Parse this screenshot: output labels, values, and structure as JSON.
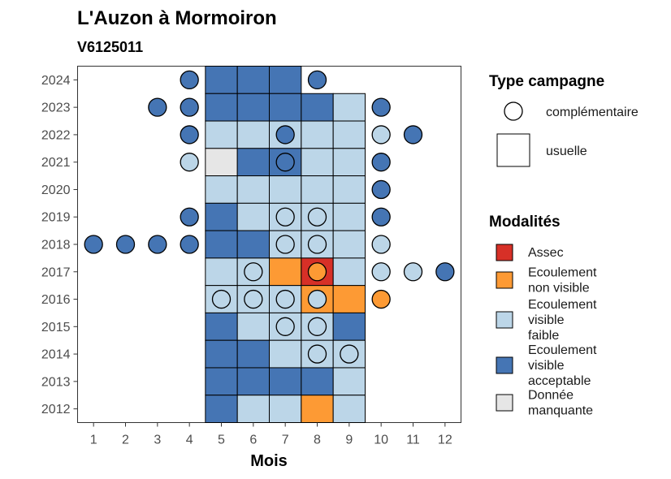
{
  "chart_data": {
    "type": "heatmap",
    "title": "L'Auzon à Mormoiron",
    "subtitle": "V6125011",
    "xlabel": "Mois",
    "ylabel": "",
    "x_ticks": [
      "1",
      "2",
      "3",
      "4",
      "5",
      "6",
      "7",
      "8",
      "9",
      "10",
      "11",
      "12"
    ],
    "y_ticks": [
      "2012",
      "2013",
      "2014",
      "2015",
      "2016",
      "2017",
      "2018",
      "2019",
      "2020",
      "2021",
      "2022",
      "2023",
      "2024"
    ],
    "xlim": [
      0.5,
      12.5
    ],
    "ylim": [
      2011.5,
      2024.5
    ],
    "grid": false,
    "legend_position": "right",
    "colors": {
      "Assec": "#d73027",
      "Ecoulement non visible": "#fd9a34",
      "Ecoulement visible faible": "#bcd6e8",
      "Ecoulement visible acceptable": "#4575b4",
      "Donnée manquante": "#e6e6e6"
    },
    "legend_type": {
      "title": "Type campagne",
      "entries": [
        {
          "label": "complémentaire",
          "shape": "circle"
        },
        {
          "label": "usuelle",
          "shape": "square"
        }
      ]
    },
    "legend_modalites": {
      "title": "Modalités",
      "entries": [
        {
          "key": "Assec",
          "lines": [
            "Assec"
          ]
        },
        {
          "key": "Ecoulement non visible",
          "lines": [
            "Ecoulement",
            "non visible"
          ]
        },
        {
          "key": "Ecoulement visible faible",
          "lines": [
            "Ecoulement",
            "visible",
            "faible"
          ]
        },
        {
          "key": "Ecoulement visible acceptable",
          "lines": [
            "Ecoulement",
            "visible",
            "acceptable"
          ]
        },
        {
          "key": "Donnée manquante",
          "lines": [
            "Donnée",
            "manquante"
          ]
        }
      ]
    },
    "usuelle": [
      {
        "year": 2024,
        "month": 5,
        "modalite": "Ecoulement visible acceptable"
      },
      {
        "year": 2024,
        "month": 6,
        "modalite": "Ecoulement visible acceptable"
      },
      {
        "year": 2024,
        "month": 7,
        "modalite": "Ecoulement visible acceptable"
      },
      {
        "year": 2023,
        "month": 5,
        "modalite": "Ecoulement visible acceptable"
      },
      {
        "year": 2023,
        "month": 6,
        "modalite": "Ecoulement visible acceptable"
      },
      {
        "year": 2023,
        "month": 7,
        "modalite": "Ecoulement visible acceptable"
      },
      {
        "year": 2023,
        "month": 8,
        "modalite": "Ecoulement visible acceptable"
      },
      {
        "year": 2023,
        "month": 9,
        "modalite": "Ecoulement visible faible"
      },
      {
        "year": 2022,
        "month": 5,
        "modalite": "Ecoulement visible faible"
      },
      {
        "year": 2022,
        "month": 6,
        "modalite": "Ecoulement visible faible"
      },
      {
        "year": 2022,
        "month": 7,
        "modalite": "Ecoulement visible faible"
      },
      {
        "year": 2022,
        "month": 8,
        "modalite": "Ecoulement visible faible"
      },
      {
        "year": 2022,
        "month": 9,
        "modalite": "Ecoulement visible faible"
      },
      {
        "year": 2021,
        "month": 5,
        "modalite": "Donnée manquante"
      },
      {
        "year": 2021,
        "month": 6,
        "modalite": "Ecoulement visible acceptable"
      },
      {
        "year": 2021,
        "month": 7,
        "modalite": "Ecoulement visible acceptable"
      },
      {
        "year": 2021,
        "month": 8,
        "modalite": "Ecoulement visible faible"
      },
      {
        "year": 2021,
        "month": 9,
        "modalite": "Ecoulement visible faible"
      },
      {
        "year": 2020,
        "month": 5,
        "modalite": "Ecoulement visible faible"
      },
      {
        "year": 2020,
        "month": 6,
        "modalite": "Ecoulement visible faible"
      },
      {
        "year": 2020,
        "month": 7,
        "modalite": "Ecoulement visible faible"
      },
      {
        "year": 2020,
        "month": 8,
        "modalite": "Ecoulement visible faible"
      },
      {
        "year": 2020,
        "month": 9,
        "modalite": "Ecoulement visible faible"
      },
      {
        "year": 2019,
        "month": 5,
        "modalite": "Ecoulement visible acceptable"
      },
      {
        "year": 2019,
        "month": 6,
        "modalite": "Ecoulement visible faible"
      },
      {
        "year": 2019,
        "month": 7,
        "modalite": "Ecoulement visible faible"
      },
      {
        "year": 2019,
        "month": 8,
        "modalite": "Ecoulement visible faible"
      },
      {
        "year": 2019,
        "month": 9,
        "modalite": "Ecoulement visible faible"
      },
      {
        "year": 2018,
        "month": 5,
        "modalite": "Ecoulement visible acceptable"
      },
      {
        "year": 2018,
        "month": 6,
        "modalite": "Ecoulement visible acceptable"
      },
      {
        "year": 2018,
        "month": 7,
        "modalite": "Ecoulement visible faible"
      },
      {
        "year": 2018,
        "month": 8,
        "modalite": "Ecoulement visible faible"
      },
      {
        "year": 2018,
        "month": 9,
        "modalite": "Ecoulement visible faible"
      },
      {
        "year": 2017,
        "month": 5,
        "modalite": "Ecoulement visible faible"
      },
      {
        "year": 2017,
        "month": 6,
        "modalite": "Ecoulement visible faible"
      },
      {
        "year": 2017,
        "month": 7,
        "modalite": "Ecoulement non visible"
      },
      {
        "year": 2017,
        "month": 8,
        "modalite": "Assec"
      },
      {
        "year": 2017,
        "month": 9,
        "modalite": "Ecoulement visible faible"
      },
      {
        "year": 2016,
        "month": 5,
        "modalite": "Ecoulement visible faible"
      },
      {
        "year": 2016,
        "month": 6,
        "modalite": "Ecoulement visible faible"
      },
      {
        "year": 2016,
        "month": 7,
        "modalite": "Ecoulement visible faible"
      },
      {
        "year": 2016,
        "month": 8,
        "modalite": "Ecoulement non visible"
      },
      {
        "year": 2016,
        "month": 9,
        "modalite": "Ecoulement non visible"
      },
      {
        "year": 2015,
        "month": 5,
        "modalite": "Ecoulement visible acceptable"
      },
      {
        "year": 2015,
        "month": 6,
        "modalite": "Ecoulement visible faible"
      },
      {
        "year": 2015,
        "month": 7,
        "modalite": "Ecoulement visible faible"
      },
      {
        "year": 2015,
        "month": 8,
        "modalite": "Ecoulement visible faible"
      },
      {
        "year": 2015,
        "month": 9,
        "modalite": "Ecoulement visible acceptable"
      },
      {
        "year": 2014,
        "month": 5,
        "modalite": "Ecoulement visible acceptable"
      },
      {
        "year": 2014,
        "month": 6,
        "modalite": "Ecoulement visible acceptable"
      },
      {
        "year": 2014,
        "month": 7,
        "modalite": "Ecoulement visible faible"
      },
      {
        "year": 2014,
        "month": 8,
        "modalite": "Ecoulement visible faible"
      },
      {
        "year": 2014,
        "month": 9,
        "modalite": "Ecoulement visible faible"
      },
      {
        "year": 2013,
        "month": 5,
        "modalite": "Ecoulement visible acceptable"
      },
      {
        "year": 2013,
        "month": 6,
        "modalite": "Ecoulement visible acceptable"
      },
      {
        "year": 2013,
        "month": 7,
        "modalite": "Ecoulement visible acceptable"
      },
      {
        "year": 2013,
        "month": 8,
        "modalite": "Ecoulement visible acceptable"
      },
      {
        "year": 2013,
        "month": 9,
        "modalite": "Ecoulement visible faible"
      },
      {
        "year": 2012,
        "month": 5,
        "modalite": "Ecoulement visible acceptable"
      },
      {
        "year": 2012,
        "month": 6,
        "modalite": "Ecoulement visible faible"
      },
      {
        "year": 2012,
        "month": 7,
        "modalite": "Ecoulement visible faible"
      },
      {
        "year": 2012,
        "month": 8,
        "modalite": "Ecoulement non visible"
      },
      {
        "year": 2012,
        "month": 9,
        "modalite": "Ecoulement visible faible"
      }
    ],
    "complementaire": [
      {
        "year": 2024,
        "month": 4,
        "modalite": "Ecoulement visible acceptable"
      },
      {
        "year": 2024,
        "month": 8,
        "modalite": "Ecoulement visible acceptable"
      },
      {
        "year": 2023,
        "month": 3,
        "modalite": "Ecoulement visible acceptable"
      },
      {
        "year": 2023,
        "month": 4,
        "modalite": "Ecoulement visible acceptable"
      },
      {
        "year": 2023,
        "month": 10,
        "modalite": "Ecoulement visible acceptable"
      },
      {
        "year": 2022,
        "month": 4,
        "modalite": "Ecoulement visible acceptable"
      },
      {
        "year": 2022,
        "month": 7,
        "modalite": "Ecoulement visible acceptable"
      },
      {
        "year": 2022,
        "month": 10,
        "modalite": "Ecoulement visible faible"
      },
      {
        "year": 2022,
        "month": 11,
        "modalite": "Ecoulement visible acceptable"
      },
      {
        "year": 2021,
        "month": 4,
        "modalite": "Ecoulement visible faible"
      },
      {
        "year": 2021,
        "month": 7,
        "modalite": "Ecoulement visible acceptable"
      },
      {
        "year": 2021,
        "month": 10,
        "modalite": "Ecoulement visible acceptable"
      },
      {
        "year": 2020,
        "month": 10,
        "modalite": "Ecoulement visible acceptable"
      },
      {
        "year": 2019,
        "month": 4,
        "modalite": "Ecoulement visible acceptable"
      },
      {
        "year": 2019,
        "month": 7,
        "modalite": "Ecoulement visible faible"
      },
      {
        "year": 2019,
        "month": 8,
        "modalite": "Ecoulement visible faible"
      },
      {
        "year": 2019,
        "month": 10,
        "modalite": "Ecoulement visible acceptable"
      },
      {
        "year": 2018,
        "month": 1,
        "modalite": "Ecoulement visible acceptable"
      },
      {
        "year": 2018,
        "month": 2,
        "modalite": "Ecoulement visible acceptable"
      },
      {
        "year": 2018,
        "month": 3,
        "modalite": "Ecoulement visible acceptable"
      },
      {
        "year": 2018,
        "month": 4,
        "modalite": "Ecoulement visible acceptable"
      },
      {
        "year": 2018,
        "month": 7,
        "modalite": "Ecoulement visible faible"
      },
      {
        "year": 2018,
        "month": 8,
        "modalite": "Ecoulement visible faible"
      },
      {
        "year": 2018,
        "month": 10,
        "modalite": "Ecoulement visible faible"
      },
      {
        "year": 2017,
        "month": 6,
        "modalite": "Ecoulement visible faible"
      },
      {
        "year": 2017,
        "month": 8,
        "modalite": "Ecoulement non visible"
      },
      {
        "year": 2017,
        "month": 10,
        "modalite": "Ecoulement visible faible"
      },
      {
        "year": 2017,
        "month": 11,
        "modalite": "Ecoulement visible faible"
      },
      {
        "year": 2017,
        "month": 12,
        "modalite": "Ecoulement visible acceptable"
      },
      {
        "year": 2016,
        "month": 5,
        "modalite": "Ecoulement visible faible"
      },
      {
        "year": 2016,
        "month": 6,
        "modalite": "Ecoulement visible faible"
      },
      {
        "year": 2016,
        "month": 7,
        "modalite": "Ecoulement visible faible"
      },
      {
        "year": 2016,
        "month": 8,
        "modalite": "Ecoulement visible faible"
      },
      {
        "year": 2016,
        "month": 10,
        "modalite": "Ecoulement non visible"
      },
      {
        "year": 2015,
        "month": 7,
        "modalite": "Ecoulement visible faible"
      },
      {
        "year": 2015,
        "month": 8,
        "modalite": "Ecoulement visible faible"
      },
      {
        "year": 2014,
        "month": 8,
        "modalite": "Ecoulement visible faible"
      },
      {
        "year": 2014,
        "month": 9,
        "modalite": "Ecoulement visible faible"
      }
    ]
  }
}
